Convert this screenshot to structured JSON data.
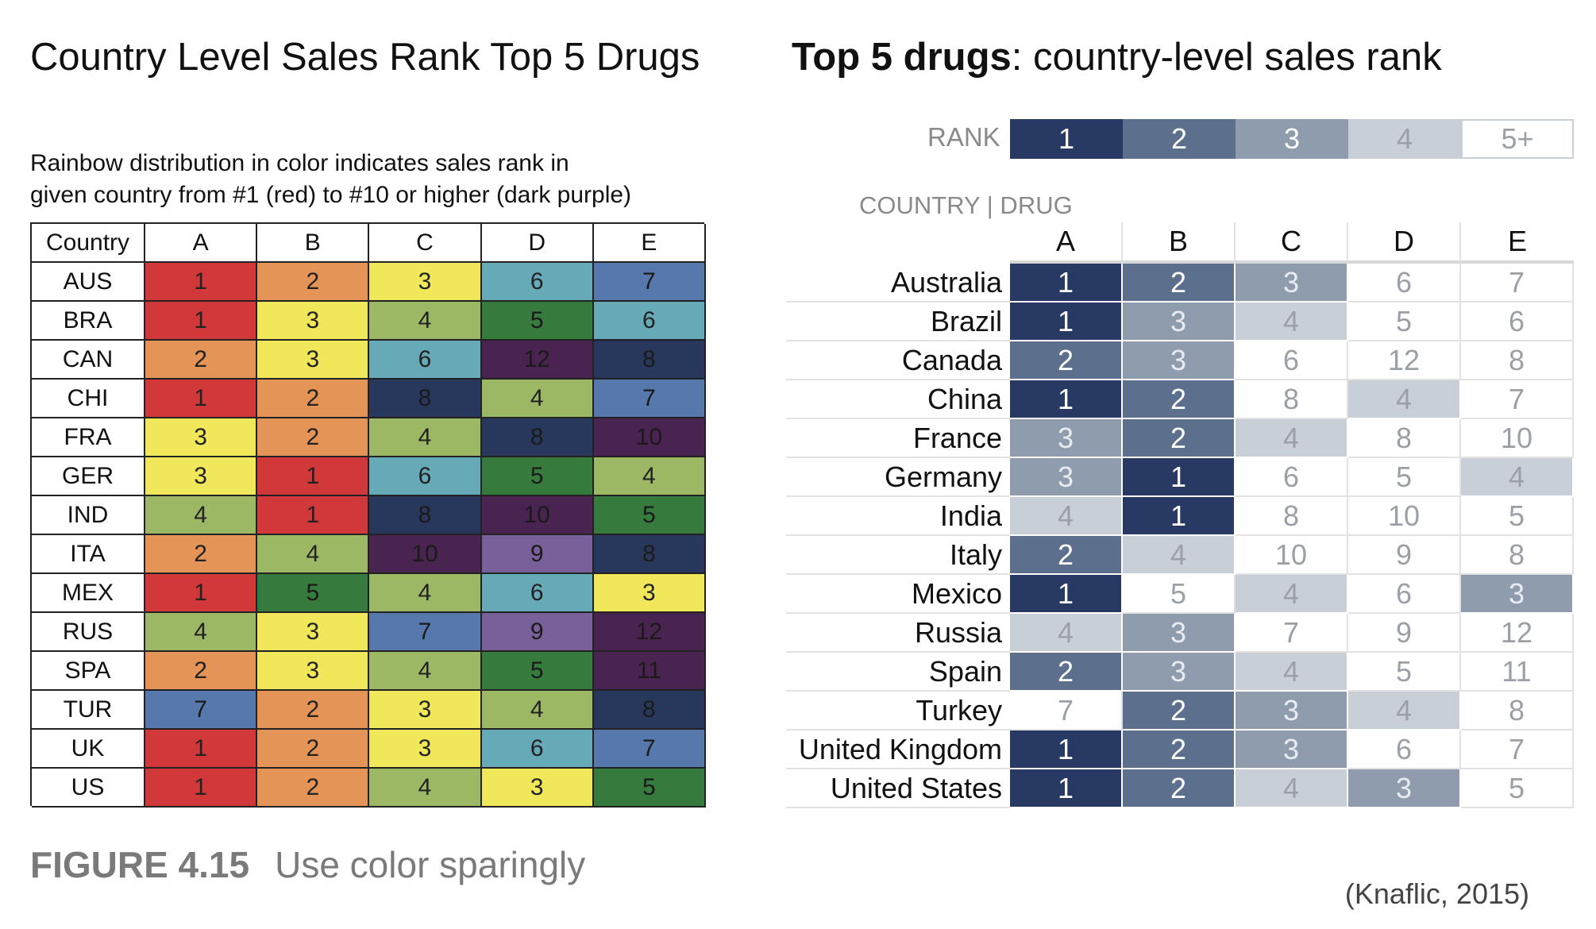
{
  "left": {
    "title": "Country Level Sales Rank Top 5 Drugs",
    "subtitle_line1": "Rainbow distribution in color indicates sales rank in",
    "subtitle_line2": "given country from #1 (red) to #10 or higher (dark purple)",
    "corner_header": "Country"
  },
  "right": {
    "title_bold": "Top 5 drugs",
    "title_rest": ": country-level sales rank",
    "rank_label": "RANK",
    "country_drug_label": "COUNTRY | DRUG",
    "legend": [
      "1",
      "2",
      "3",
      "4",
      "5+"
    ]
  },
  "caption": {
    "figure_number": "FIGURE 4.15",
    "figure_text": "Use color sparingly"
  },
  "credit": "(Knaflic, 2015)",
  "colors": {
    "rainbow": {
      "1": "#d0383a",
      "2": "#e39456",
      "3": "#f0e85a",
      "4": "#9db865",
      "5": "#377a3e",
      "6": "#66a9b7",
      "7": "#5678ad",
      "8": "#28385c",
      "9": "#7a609a",
      "10": "#4a2450",
      "11": "#4a2450",
      "12": "#4a2450"
    },
    "gray_scale": {
      "1": "#283a64",
      "2": "#5c6f8d",
      "3": "#8e9cad",
      "4": "#c9cfd6",
      "5+": "#ffffff"
    }
  },
  "chart_data": [
    {
      "type": "heatmap",
      "title": "Country Level Sales Rank Top 5 Drugs",
      "subtitle": "Rainbow distribution in color indicates sales rank in given country from #1 (red) to #10 or higher (dark purple)",
      "columns": [
        "A",
        "B",
        "C",
        "D",
        "E"
      ],
      "rows": [
        {
          "label": "AUS",
          "values": [
            1,
            2,
            3,
            6,
            7
          ]
        },
        {
          "label": "BRA",
          "values": [
            1,
            3,
            4,
            5,
            6
          ]
        },
        {
          "label": "CAN",
          "values": [
            2,
            3,
            6,
            12,
            8
          ]
        },
        {
          "label": "CHI",
          "values": [
            1,
            2,
            8,
            4,
            7
          ]
        },
        {
          "label": "FRA",
          "values": [
            3,
            2,
            4,
            8,
            10
          ]
        },
        {
          "label": "GER",
          "values": [
            3,
            1,
            6,
            5,
            4
          ]
        },
        {
          "label": "IND",
          "values": [
            4,
            1,
            8,
            10,
            5
          ]
        },
        {
          "label": "ITA",
          "values": [
            2,
            4,
            10,
            9,
            8
          ]
        },
        {
          "label": "MEX",
          "values": [
            1,
            5,
            4,
            6,
            3
          ]
        },
        {
          "label": "RUS",
          "values": [
            4,
            3,
            7,
            9,
            12
          ]
        },
        {
          "label": "SPA",
          "values": [
            2,
            3,
            4,
            5,
            11
          ]
        },
        {
          "label": "TUR",
          "values": [
            7,
            2,
            3,
            4,
            8
          ]
        },
        {
          "label": "UK",
          "values": [
            1,
            2,
            3,
            6,
            7
          ]
        },
        {
          "label": "US",
          "values": [
            1,
            2,
            4,
            3,
            5
          ]
        }
      ]
    },
    {
      "type": "heatmap",
      "title": "Top 5 drugs: country-level sales rank",
      "legend_title": "RANK",
      "legend": [
        "1",
        "2",
        "3",
        "4",
        "5+"
      ],
      "columns": [
        "A",
        "B",
        "C",
        "D",
        "E"
      ],
      "rows": [
        {
          "label": "Australia",
          "values": [
            1,
            2,
            3,
            6,
            7
          ]
        },
        {
          "label": "Brazil",
          "values": [
            1,
            3,
            4,
            5,
            6
          ]
        },
        {
          "label": "Canada",
          "values": [
            2,
            3,
            6,
            12,
            8
          ]
        },
        {
          "label": "China",
          "values": [
            1,
            2,
            8,
            4,
            7
          ]
        },
        {
          "label": "France",
          "values": [
            3,
            2,
            4,
            8,
            10
          ]
        },
        {
          "label": "Germany",
          "values": [
            3,
            1,
            6,
            5,
            4
          ]
        },
        {
          "label": "India",
          "values": [
            4,
            1,
            8,
            10,
            5
          ]
        },
        {
          "label": "Italy",
          "values": [
            2,
            4,
            10,
            9,
            8
          ]
        },
        {
          "label": "Mexico",
          "values": [
            1,
            5,
            4,
            6,
            3
          ]
        },
        {
          "label": "Russia",
          "values": [
            4,
            3,
            7,
            9,
            12
          ]
        },
        {
          "label": "Spain",
          "values": [
            2,
            3,
            4,
            5,
            11
          ]
        },
        {
          "label": "Turkey",
          "values": [
            7,
            2,
            3,
            4,
            8
          ]
        },
        {
          "label": "United Kingdom",
          "values": [
            1,
            2,
            3,
            6,
            7
          ]
        },
        {
          "label": "United States",
          "values": [
            1,
            2,
            4,
            3,
            5
          ]
        }
      ]
    }
  ]
}
